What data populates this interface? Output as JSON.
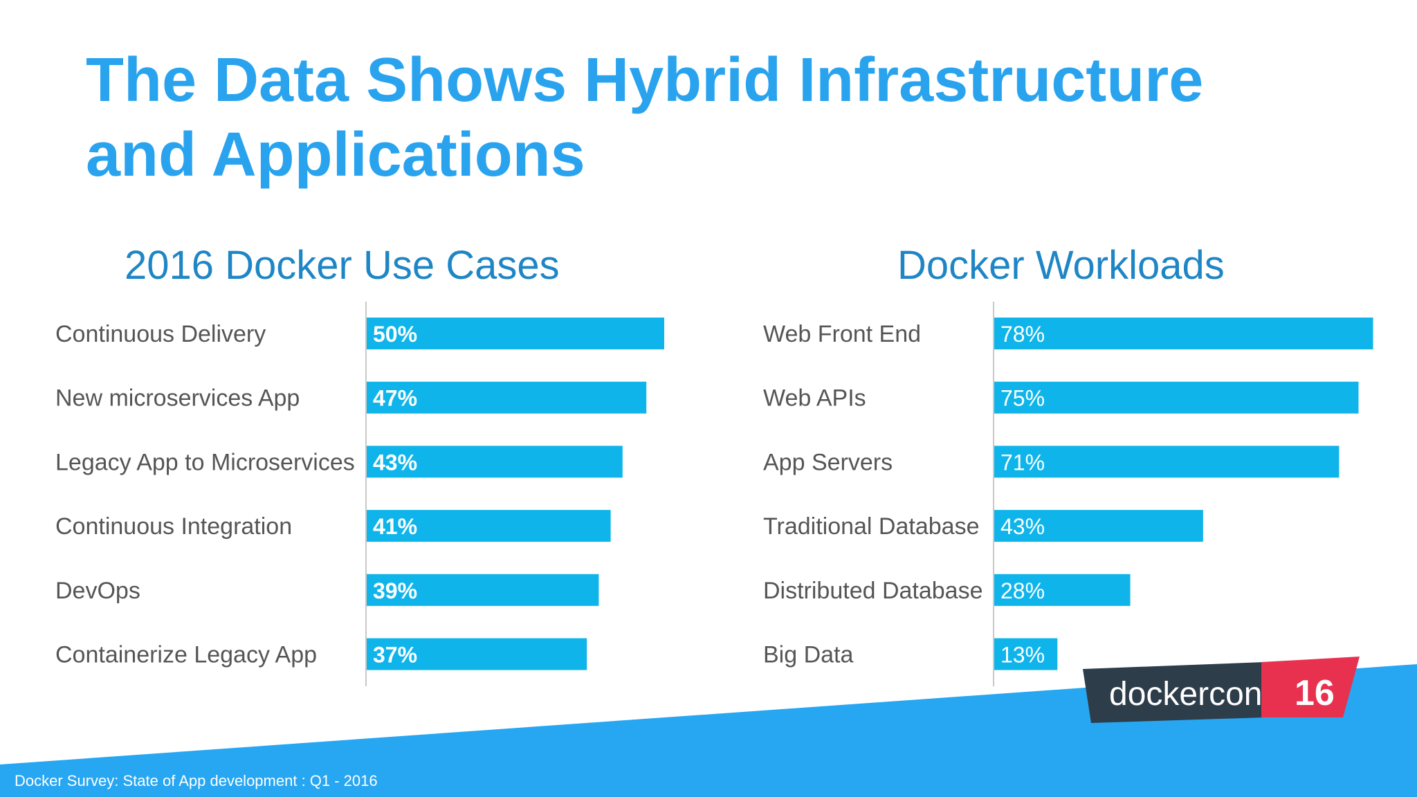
{
  "slide": {
    "title_line1": "The Data Shows Hybrid Infrastructure",
    "title_line2": "and Applications",
    "footnote": "Docker Survey: State of App development :  Q1 - 2016"
  },
  "logo": {
    "word_docker": "docker",
    "word_con": "con",
    "number": "16",
    "colors": {
      "dark": "#2e3d4a",
      "red": "#e8304f",
      "white": "#ffffff"
    }
  },
  "colors": {
    "bar": "#0fb5ea",
    "title": "#2aa3ee",
    "heading": "#1f86c6",
    "band": "#27a6f2"
  },
  "chart_data": [
    {
      "type": "bar",
      "orientation": "horizontal",
      "title": "2016 Docker Use Cases",
      "categories": [
        "Continuous Delivery",
        "New microservices App",
        "Legacy App to Microservices",
        "Continuous Integration",
        "DevOps",
        "Containerize Legacy App"
      ],
      "values": [
        50,
        47,
        43,
        41,
        39,
        37
      ],
      "value_labels": [
        "50%",
        "47%",
        "43%",
        "41%",
        "39%",
        "37%"
      ],
      "xlim": [
        0,
        100
      ],
      "grid": false
    },
    {
      "type": "bar",
      "orientation": "horizontal",
      "title": "Docker Workloads",
      "categories": [
        "Web Front End",
        "Web APIs",
        "App Servers",
        "Traditional Database",
        "Distributed Database",
        "Big Data"
      ],
      "values": [
        78,
        75,
        71,
        43,
        28,
        13
      ],
      "value_labels": [
        "78%",
        "75%",
        "71%",
        "43%",
        "28%",
        "13%"
      ],
      "xlim": [
        0,
        100
      ],
      "grid": false
    }
  ]
}
